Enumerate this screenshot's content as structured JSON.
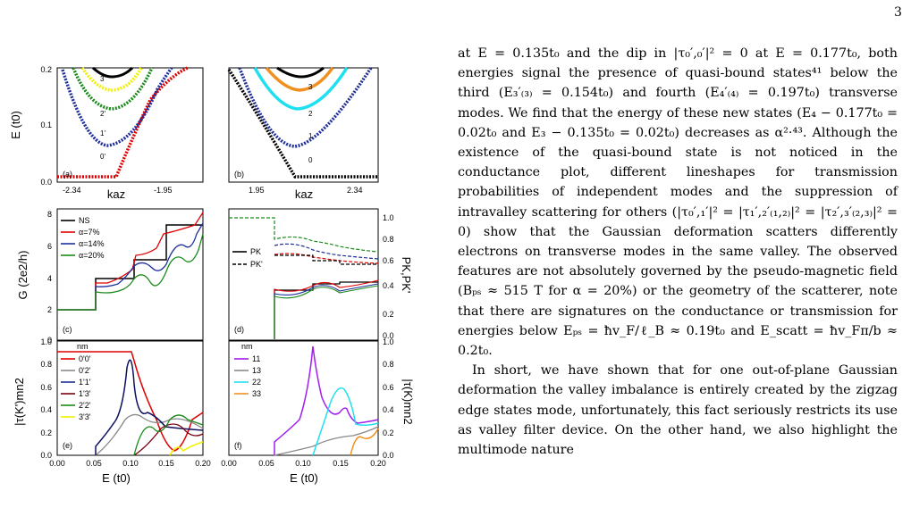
{
  "page": {
    "number": "3"
  },
  "figure": {
    "colors": {
      "black": "#000000",
      "red": "#e00000",
      "blue": "#1e2f9a",
      "green": "#1a8a1a",
      "yellow": "#f0f000",
      "gray": "#8a8a8a",
      "navy": "#101060",
      "darkred": "#7a0010",
      "purple": "#a020f0",
      "cyan": "#20e0f0",
      "orange": "#f09020"
    },
    "panel_a": {
      "letter": "(a)",
      "ylabel": "E (t",
      "ysub": "0",
      "yclose": ")",
      "xlabel": "ka",
      "xsub": "z",
      "xticks": [
        "-2.34",
        "-1.95"
      ],
      "yticks": [
        "0.0",
        "0.1",
        "0.2"
      ],
      "mode_labels": [
        "3'",
        "2'",
        "1'",
        "0'"
      ]
    },
    "panel_b": {
      "letter": "(b)",
      "xlabel": "ka",
      "xsub": "z",
      "xticks": [
        "1.95",
        "2.34"
      ],
      "mode_labels": [
        "3",
        "2",
        "1",
        "0"
      ]
    },
    "panel_c": {
      "letter": "(c)",
      "ylabel": "G (2e",
      "ysup": "2",
      "yclose": "/h)",
      "yticks": [
        "0",
        "2",
        "4",
        "6",
        "8"
      ],
      "legend": [
        "NS",
        "α=7%",
        "α=14%",
        "α=20%"
      ]
    },
    "panel_d": {
      "letter": "(d)",
      "ylabel": "P",
      "ysub1": "K",
      "ysep": ",P",
      "ysub2": "K'",
      "yticks": [
        "0.0",
        "0.2",
        "0.4",
        "0.6",
        "0.8",
        "1.0"
      ],
      "legend_p1": "P",
      "legend_p1_sub": "K",
      "legend_p2": "P",
      "legend_p2_sub": "K'"
    },
    "panel_e": {
      "letter": "(e)",
      "ylabel": "|τ(K')",
      "ylabel_sub": "mn",
      "ylabel_sup": "2",
      "yticks": [
        "0.0",
        "0.2",
        "0.4",
        "0.6",
        "0.8",
        "1.0"
      ],
      "xticks": [
        "0.00",
        "0.05",
        "0.10",
        "0.15",
        "0.20"
      ],
      "xlabel": "E (t",
      "xsub": "0",
      "xclose": ")",
      "legend_title": "nm",
      "legend": [
        "0'0'",
        "0'2'",
        "1'1'",
        "1'3'",
        "2'2'",
        "3'3'"
      ]
    },
    "panel_f": {
      "letter": "(f)",
      "ylabel": "|τ(K)",
      "ylabel_sub": "mn",
      "ylabel_sup": "2",
      "yticks": [
        "0.0",
        "0.2",
        "0.4",
        "0.6",
        "0.8",
        "1.0"
      ],
      "xticks": [
        "0.00",
        "0.05",
        "0.10",
        "0.15",
        "0.20"
      ],
      "xlabel": "E (t",
      "xsub": "0",
      "xclose": ")",
      "legend_title": "nm",
      "legend": [
        "11",
        "13",
        "22",
        "33"
      ]
    }
  },
  "text": {
    "p1": "at E = 0.135t₀ and the dip in |τ₀′,₀′|² = 0 at E = 0.177t₀, both energies signal the presence of quasi-bound states⁴¹ below the third (E₃′₍₃₎ = 0.154t₀) and fourth (E₄′₍₄₎ = 0.197t₀) transverse modes. We find that the energy of these new states (E₄ − 0.177t₀ = 0.02t₀ and E₃ − 0.135t₀ = 0.02t₀) decreases as α²·⁴³. Although the existence of the quasi-bound state is not noticed in the conductance plot, different lineshapes for transmission probabilities of independent modes and the suppression of intravalley scattering for others (|τ₀′,₁′|² = |τ₁′,₂′₍₁,₂₎|² = |τ₂′,₃′₍₂,₃₎|² = 0) show that the Gaussian deformation scatters differently electrons on transverse modes in the same valley. The observed features are not absolutely governed by the pseudo-magnetic field (Bₚₛ ≈ 515 T for α = 20%) or the geometry of the scatterer, note that there are signatures on the conductance or transmission for energies below Eₚₛ = ħv_F/ℓ_B ≈ 0.19t₀ and E_scatt = ħv_Fπ/b ≈ 0.2t₀.",
    "p2": "In short, we have shown that for one out-of-plane Gaussian deformation the valley imbalance is entirely created by the zigzag edge states mode, unfortunately, this fact seriously restricts its use as valley filter device. On the other hand, we also highlight the multimode nature"
  }
}
